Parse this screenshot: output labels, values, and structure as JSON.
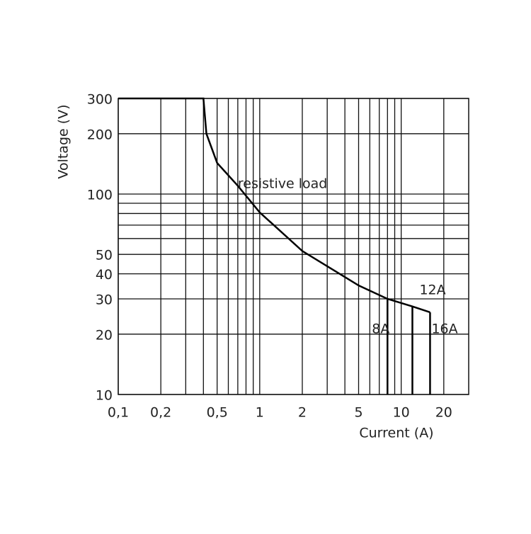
{
  "chart_data": {
    "type": "line",
    "xlabel": "Current (A)",
    "ylabel": "Voltage (V)",
    "log_x": true,
    "log_y": true,
    "grid": true,
    "color": "#000000",
    "xlim": [
      0.1,
      30
    ],
    "ylim": [
      10,
      300
    ],
    "xticks": [
      {
        "value": 0.1,
        "label": "0,1"
      },
      {
        "value": 0.2,
        "label": "0,2"
      },
      {
        "value": 0.5,
        "label": "0,5"
      },
      1,
      2,
      5,
      10,
      20
    ],
    "yticks": [
      10,
      20,
      30,
      40,
      50,
      100,
      200,
      300
    ],
    "xgrid": [
      0.1,
      0.2,
      0.3,
      0.4,
      0.5,
      0.6,
      0.7,
      0.8,
      0.9,
      1,
      2,
      3,
      4,
      5,
      6,
      7,
      8,
      9,
      10,
      20
    ],
    "ygrid": [
      10,
      20,
      30,
      40,
      50,
      60,
      70,
      80,
      90,
      100,
      200,
      300
    ],
    "series": [
      {
        "name": "resistive load",
        "x": [
          0.1,
          0.4,
          0.42,
          0.5,
          0.7,
          1,
          2,
          5,
          8,
          12,
          16
        ],
        "values": [
          300,
          300,
          200,
          143,
          110,
          81,
          52,
          35,
          30,
          27.5,
          25.7
        ]
      }
    ],
    "cutoffs": [
      {
        "label": "8A",
        "x": 8,
        "y": 30
      },
      {
        "label": "12A",
        "x": 12,
        "y": 27.5
      },
      {
        "label": "16A",
        "x": 16,
        "y": 25.7
      }
    ]
  }
}
